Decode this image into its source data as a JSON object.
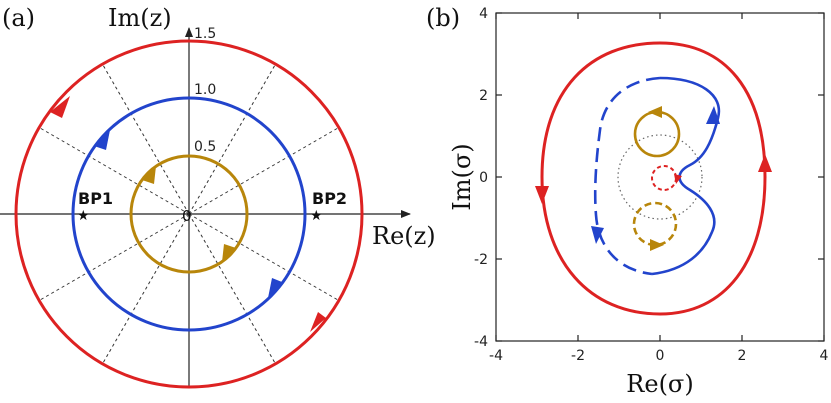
{
  "panel_a": {
    "label": "(a)",
    "x_axis_label": "Re(z)",
    "y_axis_label": "Im(z)",
    "origin_label": "0",
    "radius_labels": [
      "1.5",
      "1.0",
      "0.5"
    ],
    "branch_points": [
      {
        "name": "BP1",
        "re": -0.87,
        "im": 0
      },
      {
        "name": "BP2",
        "re": 1.1,
        "im": 0
      }
    ],
    "circles": [
      {
        "radius": 1.5,
        "color": "#dd2222",
        "direction": "counterclockwise"
      },
      {
        "radius": 1.0,
        "color": "#2244cc",
        "direction": "counterclockwise"
      },
      {
        "radius": 0.5,
        "color": "#b8860b",
        "direction": "counterclockwise"
      }
    ],
    "ray_count": 12
  },
  "panel_b": {
    "label": "(b)",
    "x_axis_label": "Re(σ)",
    "y_axis_label": "Im(σ)",
    "x_ticks": [
      "-4",
      "-2",
      "0",
      "2",
      "4"
    ],
    "y_ticks": [
      "4",
      "2",
      "0",
      "-2",
      "-4"
    ],
    "xlim": [
      -4,
      4
    ],
    "ylim": [
      -4,
      4
    ],
    "curve_colors": {
      "red": "#dd2222",
      "blue": "#2244cc",
      "gold": "#b8860b"
    }
  }
}
